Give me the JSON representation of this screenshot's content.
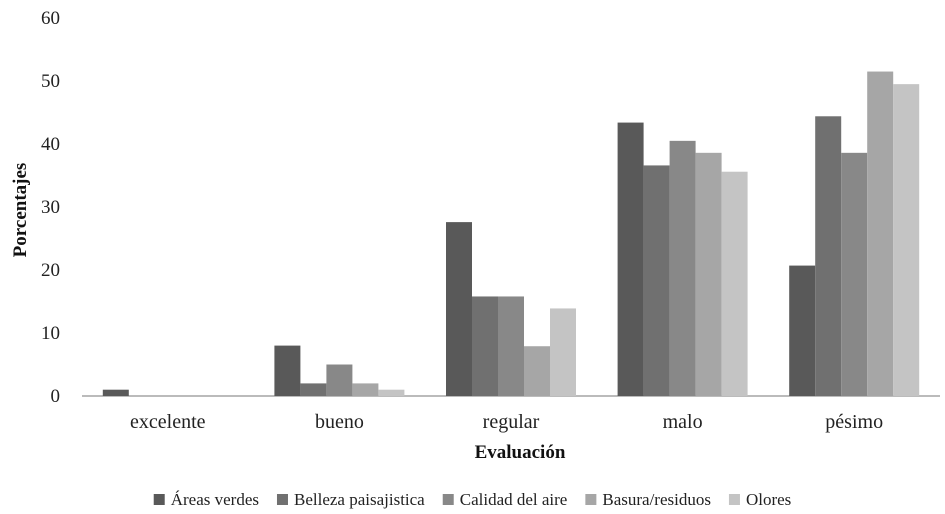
{
  "chart_data": {
    "type": "bar",
    "title": "",
    "xlabel": "Evaluación",
    "ylabel": "Porcentajes",
    "ylim": [
      0,
      60
    ],
    "yticks": [
      0,
      10,
      20,
      30,
      40,
      50,
      60
    ],
    "categories": [
      "excelente",
      "bueno",
      "regular",
      "malo",
      "pésimo"
    ],
    "series": [
      {
        "name": "Áreas verdes",
        "color": "#595959",
        "values": [
          1,
          8,
          27.6,
          43.4,
          20.7
        ]
      },
      {
        "name": "Belleza paisajistica",
        "color": "#707070",
        "values": [
          0,
          2,
          15.8,
          36.6,
          44.4
        ]
      },
      {
        "name": "Calidad del aire",
        "color": "#888888",
        "values": [
          0,
          5,
          15.8,
          40.5,
          38.6
        ]
      },
      {
        "name": "Basura/residuos",
        "color": "#a6a6a6",
        "values": [
          0,
          2,
          7.9,
          38.6,
          51.5
        ]
      },
      {
        "name": "Olores",
        "color": "#c4c4c4",
        "values": [
          0,
          1,
          13.9,
          35.6,
          49.5
        ]
      }
    ],
    "grid": false,
    "legend_position": "bottom"
  }
}
